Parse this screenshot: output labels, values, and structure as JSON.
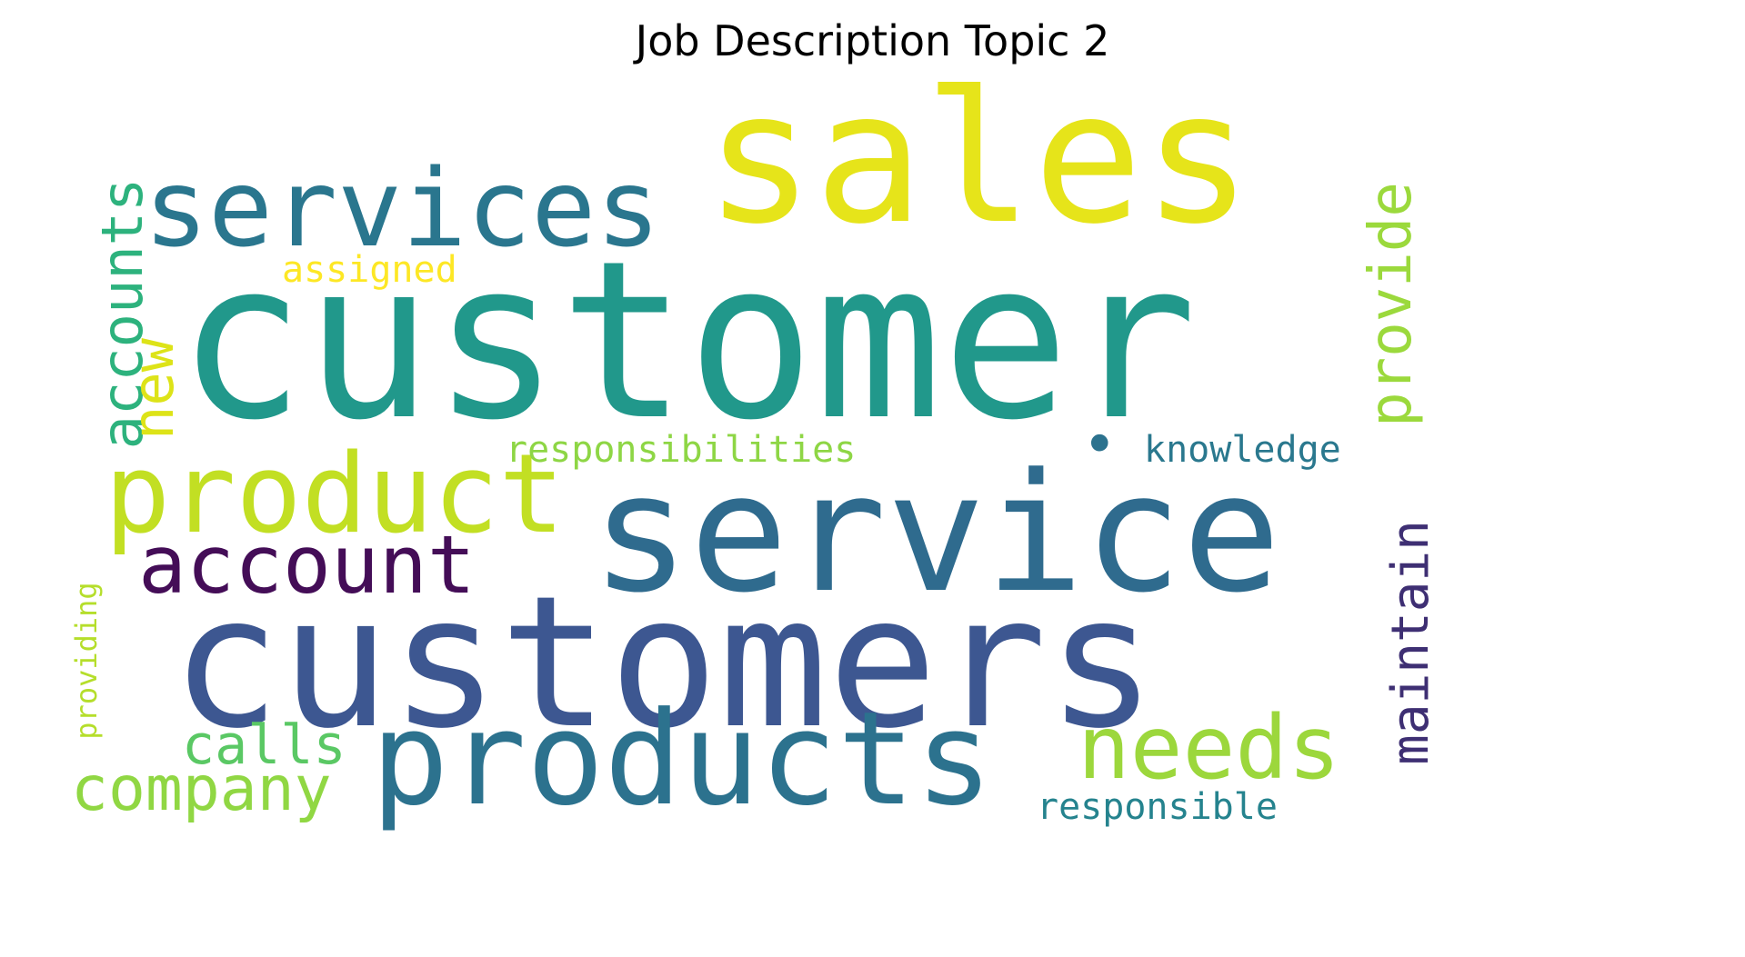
{
  "title": "Job Description Topic 2",
  "words": [
    {
      "key": "customer",
      "text": "customer",
      "color": "#21988b"
    },
    {
      "key": "sales",
      "text": "sales",
      "color": "#e6e41a"
    },
    {
      "key": "service",
      "text": "service",
      "color": "#2f6b8e"
    },
    {
      "key": "customers",
      "text": "customers",
      "color": "#3d5791"
    },
    {
      "key": "services",
      "text": "services",
      "color": "#2a768e"
    },
    {
      "key": "product",
      "text": "product",
      "color": "#c2df23"
    },
    {
      "key": "products",
      "text": "products",
      "color": "#2c728e"
    },
    {
      "key": "account",
      "text": "account",
      "color": "#440d57"
    },
    {
      "key": "accounts",
      "text": "accounts",
      "color": "#2db27d"
    },
    {
      "key": "new",
      "text": "new",
      "color": "#dde318"
    },
    {
      "key": "provide",
      "text": "provide",
      "color": "#9bd93c"
    },
    {
      "key": "maintain",
      "text": "maintain",
      "color": "#3e2f73"
    },
    {
      "key": "needs",
      "text": "needs",
      "color": "#9cd73c"
    },
    {
      "key": "company",
      "text": "company",
      "color": "#90d743"
    },
    {
      "key": "calls",
      "text": "calls",
      "color": "#5ac864"
    },
    {
      "key": "assigned",
      "text": "assigned",
      "color": "#fde725"
    },
    {
      "key": "responsibilities",
      "text": "responsibilities",
      "color": "#8ed645"
    },
    {
      "key": "knowledge",
      "text": "knowledge",
      "color": "#2a788e"
    },
    {
      "key": "responsible",
      "text": "responsible",
      "color": "#25838e"
    },
    {
      "key": "providing",
      "text": "providing",
      "color": "#b5de2b"
    },
    {
      "key": "dot",
      "text": "•",
      "color": "#2c728e"
    }
  ]
}
